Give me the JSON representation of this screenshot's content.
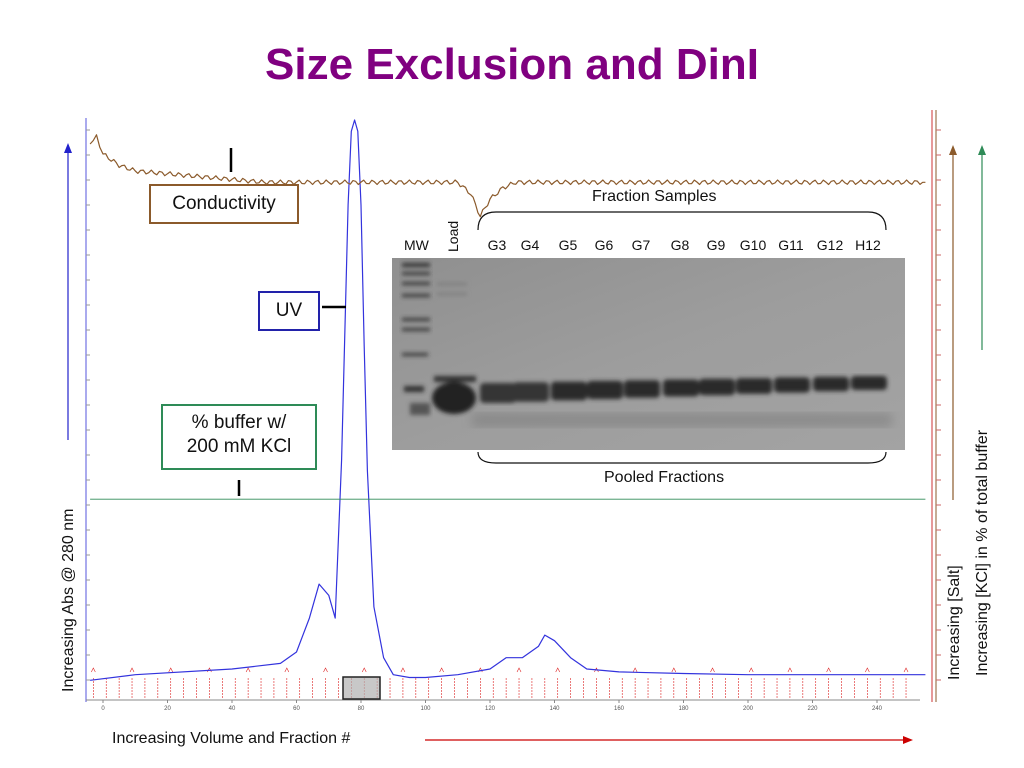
{
  "title": "Size Exclusion and DinI",
  "labels": {
    "conductivity": "Conductivity",
    "uv": "UV",
    "buffer_line1": "% buffer  w/",
    "buffer_line2": "200 mM KCl",
    "fraction_samples": "Fraction Samples",
    "pooled_fractions": "Pooled Fractions",
    "mw": "MW",
    "load": "Load"
  },
  "lanes": [
    "G3",
    "G4",
    "G5",
    "G6",
    "G7",
    "G8",
    "G9",
    "G10",
    "G11",
    "G12",
    "H12"
  ],
  "axes": {
    "y_left": "Increasing Abs @ 280 nm",
    "y_right_1": "Increasing [Salt]",
    "y_right_2": "Increasing [KCl] in % of total buffer",
    "x_bottom": "Increasing Volume and Fraction #"
  },
  "colors": {
    "title": "#800080",
    "uv": "#3333dd",
    "conductivity": "#8B5A2B",
    "buffer": "#2e8b57",
    "fractions": "#dd2222",
    "axis_arrow_bottom": "#cc0000"
  },
  "chart_data": {
    "type": "line",
    "x_ticks": [
      0,
      20,
      40,
      60,
      80,
      100,
      120,
      140,
      160,
      180,
      200,
      220,
      240
    ],
    "xlim": [
      -4,
      255
    ],
    "series": [
      {
        "name": "UV",
        "x": [
          -4,
          10,
          40,
          55,
          60,
          64,
          67,
          70,
          72,
          74,
          76,
          77,
          78,
          79,
          80,
          81,
          82,
          84,
          87,
          90,
          95,
          100,
          110,
          120,
          125,
          130,
          135,
          137,
          140,
          145,
          150,
          160,
          180,
          200,
          240,
          255
        ],
        "y": [
          0.01,
          0.02,
          0.03,
          0.04,
          0.06,
          0.12,
          0.18,
          0.16,
          0.12,
          0.4,
          0.85,
          0.98,
          1.0,
          0.98,
          0.85,
          0.6,
          0.38,
          0.14,
          0.05,
          0.02,
          0.015,
          0.015,
          0.02,
          0.03,
          0.05,
          0.05,
          0.07,
          0.09,
          0.08,
          0.05,
          0.03,
          0.025,
          0.022,
          0.02,
          0.02,
          0.02
        ]
      },
      {
        "name": "Conductivity",
        "x": [
          -4,
          -2,
          0,
          5,
          10,
          30,
          50,
          70,
          90,
          110,
          114,
          117,
          120,
          124,
          128,
          140,
          170,
          200,
          230,
          255
        ],
        "y": [
          0.96,
          0.97,
          0.94,
          0.92,
          0.91,
          0.9,
          0.89,
          0.89,
          0.89,
          0.89,
          0.87,
          0.83,
          0.86,
          0.88,
          0.89,
          0.89,
          0.89,
          0.89,
          0.89,
          0.89
        ]
      },
      {
        "name": "% buffer w/ 200 mM KCl",
        "x": [
          -4,
          255
        ],
        "y": [
          0.33,
          0.33
        ]
      }
    ]
  }
}
